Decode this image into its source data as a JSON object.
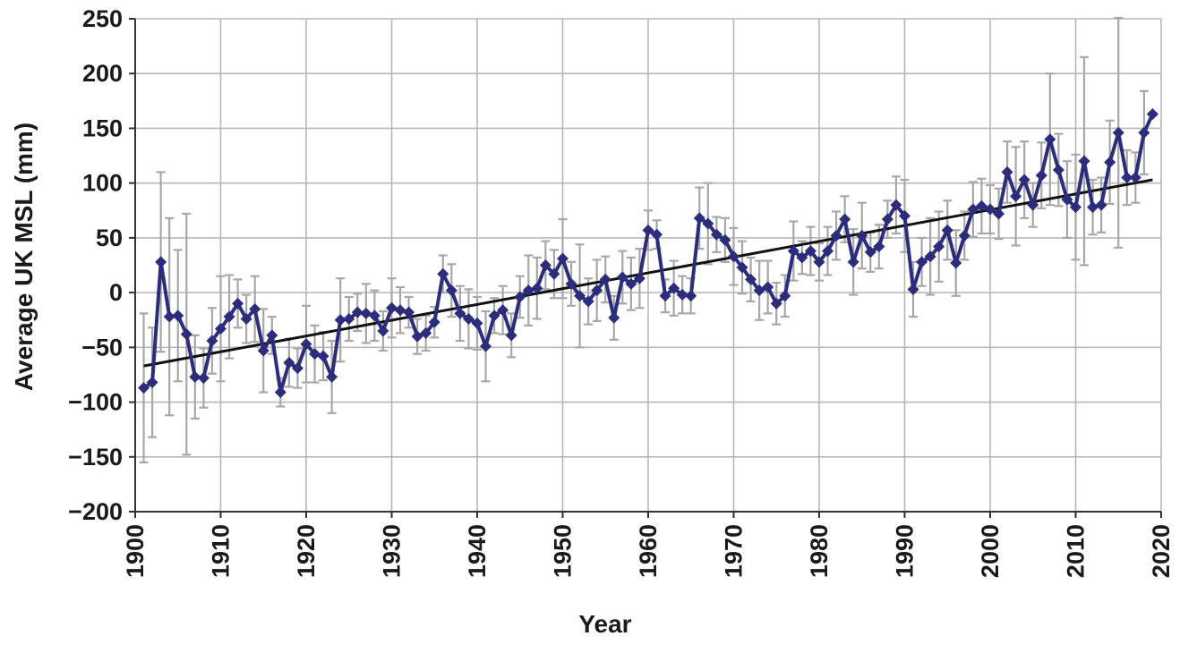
{
  "chart_data": {
    "type": "line",
    "xlabel": "Year",
    "ylabel": "Average UK MSL (mm)",
    "xlim": [
      1900,
      2020
    ],
    "ylim": [
      -200,
      250
    ],
    "x_ticks": [
      1900,
      1910,
      1920,
      1930,
      1940,
      1950,
      1960,
      1970,
      1980,
      1990,
      2000,
      2010,
      2020
    ],
    "y_ticks": [
      250,
      200,
      150,
      100,
      50,
      0,
      -50,
      -100,
      -150,
      -200
    ],
    "y_tick_labels": [
      "250",
      "200",
      "150",
      "100",
      "50",
      "0",
      "−50",
      "−100",
      "−150",
      "−200"
    ],
    "grid": true,
    "legend": "none",
    "colors": {
      "series": "#2b2d7c",
      "error_bars": "#a8a8a8",
      "trend": "#111111",
      "grid": "#b8b8b8"
    },
    "series": [
      {
        "marker": "diamond",
        "x": [
          1901,
          1902,
          1903,
          1904,
          1905,
          1906,
          1907,
          1908,
          1909,
          1910,
          1911,
          1912,
          1913,
          1914,
          1915,
          1916,
          1917,
          1918,
          1919,
          1920,
          1921,
          1922,
          1923,
          1924,
          1925,
          1926,
          1927,
          1928,
          1929,
          1930,
          1931,
          1932,
          1933,
          1934,
          1935,
          1936,
          1937,
          1938,
          1939,
          1940,
          1941,
          1942,
          1943,
          1944,
          1945,
          1946,
          1947,
          1948,
          1949,
          1950,
          1951,
          1952,
          1953,
          1954,
          1955,
          1956,
          1957,
          1958,
          1959,
          1960,
          1961,
          1962,
          1963,
          1964,
          1965,
          1966,
          1967,
          1968,
          1969,
          1970,
          1971,
          1972,
          1973,
          1974,
          1975,
          1976,
          1977,
          1978,
          1979,
          1980,
          1981,
          1982,
          1983,
          1984,
          1985,
          1986,
          1987,
          1988,
          1989,
          1990,
          1991,
          1992,
          1993,
          1994,
          1995,
          1996,
          1997,
          1998,
          1999,
          2000,
          2001,
          2002,
          2003,
          2004,
          2005,
          2006,
          2007,
          2008,
          2009,
          2010,
          2011,
          2012,
          2013,
          2014,
          2015,
          2016,
          2017,
          2018,
          2019
        ],
        "values": [
          -87,
          -82,
          28,
          -22,
          -21,
          -38,
          -77,
          -78,
          -44,
          -33,
          -22,
          -10,
          -24,
          -15,
          -53,
          -39,
          -91,
          -64,
          -69,
          -47,
          -56,
          -58,
          -77,
          -25,
          -24,
          -18,
          -19,
          -21,
          -35,
          -14,
          -16,
          -18,
          -40,
          -37,
          -27,
          17,
          2,
          -19,
          -24,
          -28,
          -49,
          -21,
          -16,
          -39,
          -4,
          2,
          4,
          25,
          17,
          31,
          8,
          -3,
          -8,
          2,
          12,
          -23,
          14,
          8,
          13,
          57,
          53,
          -3,
          4,
          -2,
          -3,
          68,
          63,
          53,
          48,
          33,
          23,
          12,
          2,
          5,
          -10,
          -3,
          38,
          32,
          38,
          28,
          38,
          52,
          67,
          28,
          52,
          37,
          42,
          67,
          80,
          70,
          3,
          28,
          33,
          42,
          57,
          27,
          52,
          76,
          79,
          76,
          72,
          110,
          88,
          103,
          80,
          107,
          140,
          112,
          85,
          78,
          120,
          78,
          80,
          119,
          146,
          105,
          105,
          146,
          163
        ],
        "error": [
          68,
          50,
          82,
          90,
          60,
          110,
          38,
          27,
          30,
          48,
          38,
          22,
          22,
          30,
          38,
          17,
          13,
          22,
          18,
          35,
          26,
          22,
          33,
          38,
          20,
          17,
          27,
          23,
          18,
          27,
          21,
          14,
          16,
          16,
          14,
          17,
          24,
          25,
          27,
          24,
          32,
          16,
          22,
          20,
          19,
          32,
          28,
          22,
          22,
          36,
          20,
          47,
          21,
          28,
          21,
          20,
          24,
          24,
          27,
          18,
          13,
          15,
          25,
          17,
          16,
          28,
          37,
          16,
          20,
          26,
          24,
          20,
          27,
          24,
          19,
          19,
          27,
          15,
          22,
          17,
          22,
          22,
          21,
          30,
          30,
          18,
          20,
          17,
          26,
          33,
          25,
          22,
          35,
          32,
          27,
          30,
          22,
          25,
          25,
          22,
          23,
          28,
          45,
          35,
          20,
          30,
          60,
          33,
          35,
          48,
          95,
          25,
          25,
          38,
          105,
          25,
          23,
          38,
          1
        ]
      }
    ],
    "trend": {
      "x": [
        1901,
        2019
      ],
      "values": [
        -67,
        103
      ]
    }
  }
}
